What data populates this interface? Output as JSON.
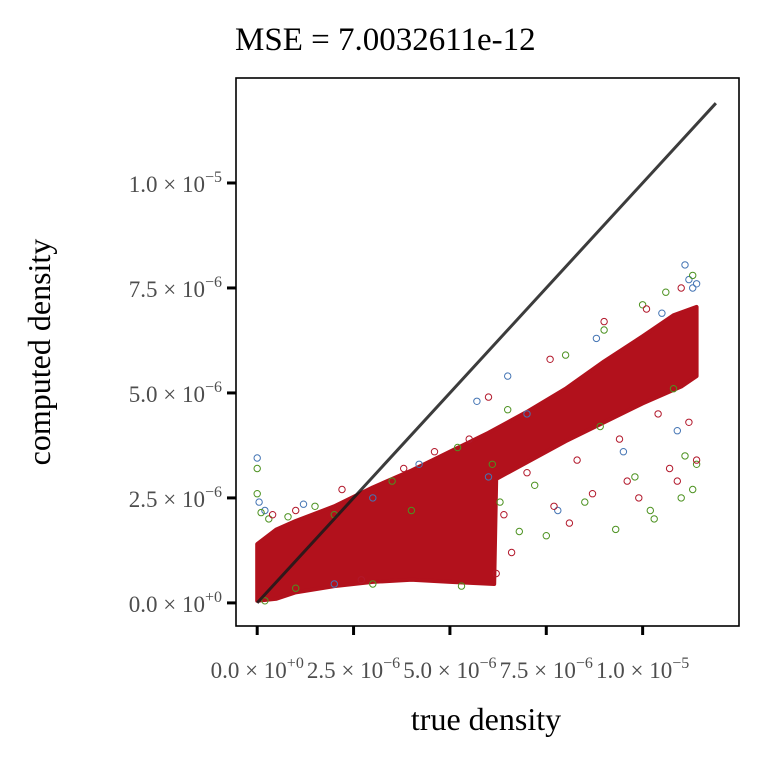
{
  "chart_data": {
    "type": "scatter",
    "title": "MSE = 7.0032611e-12",
    "xlabel": "true density",
    "ylabel": "computed density",
    "xlim": [
      -5.5e-07,
      1.25e-05
    ],
    "ylim": [
      -5.5e-07,
      1.25e-05
    ],
    "x_ticks": [
      {
        "value": 0,
        "mantissa": "0.0",
        "exponent": "+0"
      },
      {
        "value": 2.5e-06,
        "mantissa": "2.5",
        "exponent": "−6"
      },
      {
        "value": 5e-06,
        "mantissa": "5.0",
        "exponent": "−6"
      },
      {
        "value": 7.5e-06,
        "mantissa": "7.5",
        "exponent": "−6"
      },
      {
        "value": 1e-05,
        "mantissa": "1.0",
        "exponent": "−5"
      }
    ],
    "y_ticks": [
      {
        "value": 0,
        "mantissa": "0.0",
        "exponent": "+0"
      },
      {
        "value": 2.5e-06,
        "mantissa": "2.5",
        "exponent": "−6"
      },
      {
        "value": 5e-06,
        "mantissa": "5.0",
        "exponent": "−6"
      },
      {
        "value": 7.5e-06,
        "mantissa": "7.5",
        "exponent": "−6"
      },
      {
        "value": 1e-05,
        "mantissa": "1.0",
        "exponent": "−5"
      }
    ],
    "times_symbol": "×",
    "base": "10",
    "reference_line": {
      "x": [
        0,
        1.19e-05
      ],
      "y": [
        0,
        1.19e-05
      ],
      "color": "#1a1a1a"
    },
    "grid": false,
    "legend": "none",
    "series": [
      {
        "color": "#4575b4",
        "points": [
          [
            0.0,
            3.45e-06
          ],
          [
            5e-08,
            2.4e-06
          ],
          [
            2e-07,
            2.2e-06
          ],
          [
            1.2e-06,
            2.35e-06
          ],
          [
            5.7e-06,
            4.8e-06
          ],
          [
            6e-06,
            3e-06
          ],
          [
            7e-06,
            4.5e-06
          ],
          [
            7.8e-06,
            2.2e-06
          ],
          [
            8.8e-06,
            6.3e-06
          ],
          [
            1.05e-05,
            6.9e-06
          ],
          [
            1.11e-05,
            8.05e-06
          ],
          [
            1.12e-05,
            7.7e-06
          ],
          [
            1.13e-05,
            7.5e-06
          ],
          [
            1.14e-05,
            7.6e-06
          ],
          [
            3e-06,
            2.5e-06
          ],
          [
            9.5e-06,
            3.6e-06
          ],
          [
            6.5e-06,
            5.4e-06
          ],
          [
            4.2e-06,
            3.3e-06
          ],
          [
            1.09e-05,
            4.1e-06
          ],
          [
            2e-06,
            4.5e-07
          ]
        ]
      },
      {
        "color": "#4d9221",
        "points": [
          [
            0.0,
            3.2e-06
          ],
          [
            0.0,
            2.6e-06
          ],
          [
            1e-07,
            2.15e-06
          ],
          [
            3e-07,
            2e-06
          ],
          [
            8e-07,
            2.05e-06
          ],
          [
            1.5e-06,
            2.3e-06
          ],
          [
            2e-06,
            2.1e-06
          ],
          [
            3.5e-06,
            2.9e-06
          ],
          [
            5.2e-06,
            3.7e-06
          ],
          [
            5.3e-06,
            4e-07
          ],
          [
            3e-06,
            4.5e-07
          ],
          [
            1e-06,
            3.5e-07
          ],
          [
            6.3e-06,
            2.4e-06
          ],
          [
            6.8e-06,
            1.7e-06
          ],
          [
            7.5e-06,
            1.6e-06
          ],
          [
            8.5e-06,
            2.4e-06
          ],
          [
            9.3e-06,
            1.75e-06
          ],
          [
            1.02e-05,
            2.2e-06
          ],
          [
            1.03e-05,
            2e-06
          ],
          [
            1.1e-05,
            2.5e-06
          ],
          [
            1.13e-05,
            2.7e-06
          ],
          [
            1.11e-05,
            3.5e-06
          ],
          [
            8e-06,
            5.9e-06
          ],
          [
            9e-06,
            6.5e-06
          ],
          [
            1e-05,
            7.1e-06
          ],
          [
            1.06e-05,
            7.4e-06
          ],
          [
            1.13e-05,
            7.8e-06
          ],
          [
            6.5e-06,
            4.6e-06
          ],
          [
            4e-06,
            2.2e-06
          ],
          [
            7.2e-06,
            2.8e-06
          ],
          [
            9.8e-06,
            3e-06
          ],
          [
            1.14e-05,
            3.3e-06
          ],
          [
            2e-07,
            5e-08
          ],
          [
            8.9e-06,
            4.2e-06
          ],
          [
            1.08e-05,
            5.1e-06
          ],
          [
            6.1e-06,
            3.3e-06
          ]
        ]
      },
      {
        "color": "#b2182b",
        "points": [
          [
            4e-07,
            2.1e-06
          ],
          [
            1e-06,
            2.2e-06
          ],
          [
            2.2e-06,
            2.7e-06
          ],
          [
            3.8e-06,
            3.2e-06
          ],
          [
            5.5e-06,
            3.9e-06
          ],
          [
            6.2e-06,
            7e-07
          ],
          [
            6.4e-06,
            2.1e-06
          ],
          [
            7e-06,
            3.1e-06
          ],
          [
            7.7e-06,
            2.3e-06
          ],
          [
            8.3e-06,
            3.4e-06
          ],
          [
            8.7e-06,
            2.6e-06
          ],
          [
            9.4e-06,
            3.9e-06
          ],
          [
            9.9e-06,
            2.5e-06
          ],
          [
            1.04e-05,
            4.5e-06
          ],
          [
            1.07e-05,
            3.2e-06
          ],
          [
            1.12e-05,
            4.3e-06
          ],
          [
            1.14e-05,
            3.4e-06
          ],
          [
            9e-06,
            6.7e-06
          ],
          [
            1.01e-05,
            7e-06
          ],
          [
            1.1e-05,
            7.5e-06
          ],
          [
            7.6e-06,
            5.8e-06
          ],
          [
            6e-06,
            4.9e-06
          ],
          [
            4.6e-06,
            3.6e-06
          ],
          [
            2.7e-06,
            5.5e-07
          ],
          [
            6.6e-06,
            1.2e-06
          ],
          [
            8.1e-06,
            1.9e-06
          ],
          [
            9.6e-06,
            2.9e-06
          ],
          [
            1.09e-05,
            2.9e-06
          ]
        ]
      }
    ],
    "band": {
      "color": "#b2111c",
      "upper": [
        [
          0.0,
          1.4e-06
        ],
        [
          5e-07,
          1.75e-06
        ],
        [
          1e-06,
          1.95e-06
        ],
        [
          2e-06,
          2.3e-06
        ],
        [
          3e-06,
          2.75e-06
        ],
        [
          4e-06,
          3.15e-06
        ],
        [
          5e-06,
          3.6e-06
        ],
        [
          6e-06,
          4.05e-06
        ],
        [
          7e-06,
          4.55e-06
        ],
        [
          8e-06,
          5.1e-06
        ],
        [
          9e-06,
          5.75e-06
        ],
        [
          1e-05,
          6.35e-06
        ],
        [
          1.08e-05,
          6.85e-06
        ],
        [
          1.14e-05,
          7.05e-06
        ]
      ],
      "lower": [
        [
          1.14e-05,
          5.4e-06
        ],
        [
          1.1e-05,
          5.15e-06
        ],
        [
          1e-05,
          4.75e-06
        ],
        [
          9e-06,
          4.3e-06
        ],
        [
          8e-06,
          3.85e-06
        ],
        [
          7e-06,
          3.35e-06
        ],
        [
          6.2e-06,
          2.95e-06
        ],
        [
          6.15e-06,
          4.5e-07
        ],
        [
          5e-06,
          5e-07
        ],
        [
          4e-06,
          5.5e-07
        ],
        [
          3e-06,
          5e-07
        ],
        [
          2e-06,
          4e-07
        ],
        [
          1e-06,
          2.5e-07
        ],
        [
          5e-07,
          1e-07
        ],
        [
          0.0,
          5e-08
        ]
      ]
    }
  }
}
